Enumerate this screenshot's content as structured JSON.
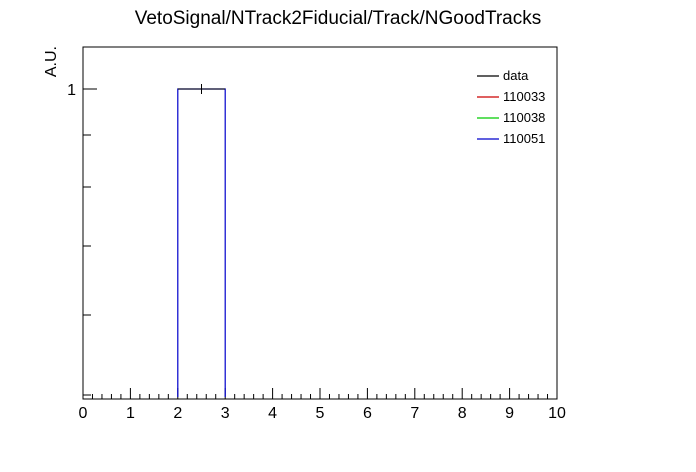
{
  "chart_data": {
    "type": "bar",
    "title": "VetoSignal/NTrack2Fiducial/Track/NGoodTracks",
    "xlabel": "",
    "ylabel": "A.U.",
    "xlim": [
      0,
      10
    ],
    "ylim": [
      0,
      1
    ],
    "log_y": true,
    "x_ticks": [
      "0",
      "1",
      "2",
      "3",
      "4",
      "5",
      "6",
      "7",
      "8",
      "9",
      "10"
    ],
    "y_ticks": [
      "1"
    ],
    "grid": false,
    "legend_position": "top-right",
    "series": [
      {
        "name": "data",
        "color": "#000000",
        "bins": [
          {
            "x0": 2,
            "x1": 3,
            "value": 1
          }
        ]
      },
      {
        "name": "110033",
        "color": "#cc0000",
        "bins": []
      },
      {
        "name": "110038",
        "color": "#00cc00",
        "bins": []
      },
      {
        "name": "110051",
        "color": "#0000cc",
        "bins": [
          {
            "x0": 2,
            "x1": 3,
            "value": 1
          }
        ]
      }
    ]
  }
}
